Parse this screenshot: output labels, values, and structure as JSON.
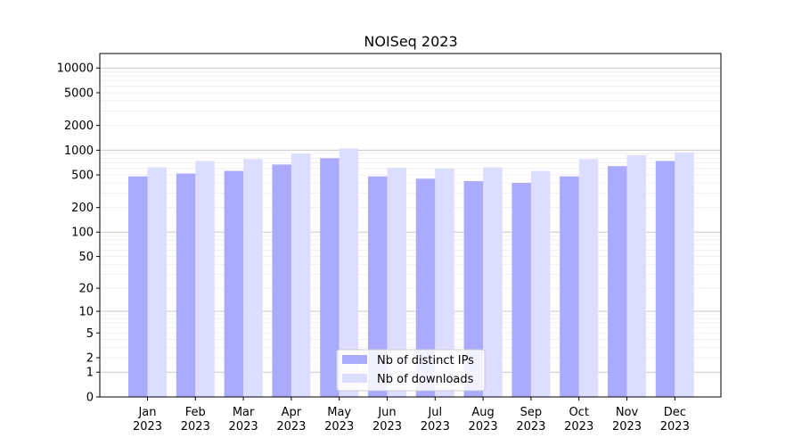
{
  "chart_data": {
    "type": "bar",
    "title": "NOISeq 2023",
    "xlabel": "",
    "ylabel": "",
    "yscale": "symlog",
    "categories": [
      "Jan\n2023",
      "Feb\n2023",
      "Mar\n2023",
      "Apr\n2023",
      "May\n2023",
      "Jun\n2023",
      "Jul\n2023",
      "Aug\n2023",
      "Sep\n2023",
      "Oct\n2023",
      "Nov\n2023",
      "Dec\n2023"
    ],
    "series": [
      {
        "name": "Nb of distinct IPs",
        "color": "#aaaaff",
        "values": [
          480,
          520,
          560,
          670,
          800,
          480,
          450,
          420,
          400,
          480,
          640,
          740
        ]
      },
      {
        "name": "Nb of downloads",
        "color": "#ddddff",
        "values": [
          620,
          740,
          780,
          910,
          1050,
          610,
          600,
          620,
          560,
          780,
          870,
          940
        ]
      }
    ],
    "yticks": [
      0,
      1,
      2,
      5,
      10,
      20,
      50,
      100,
      200,
      500,
      1000,
      2000,
      5000,
      10000
    ],
    "ylim": [
      0,
      15000
    ],
    "grid": true,
    "legend_position": "bottom-center"
  }
}
